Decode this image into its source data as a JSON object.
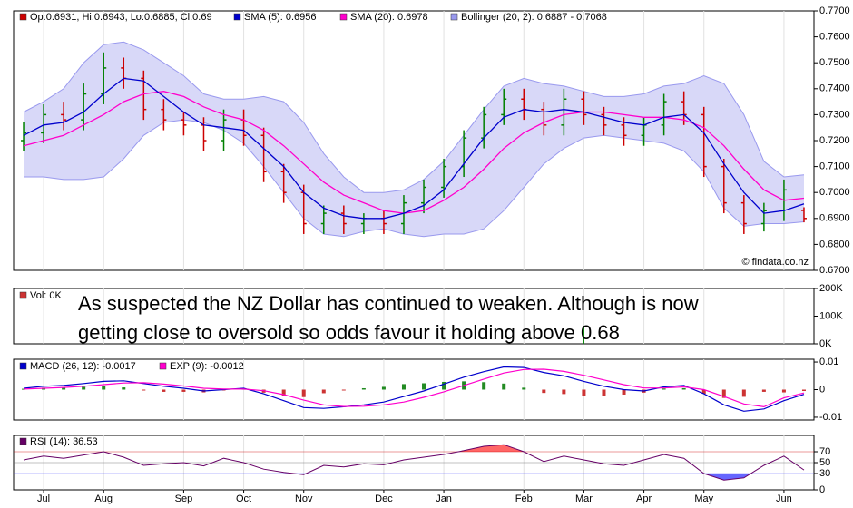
{
  "chart_data": [
    {
      "type": "ohlc",
      "legend_label": "Op:0.6931, Hi:0.6943, Lo:0.6885, Cl:0.69",
      "open": [
        0.72,
        0.723,
        0.73,
        0.728,
        0.738,
        0.748,
        0.744,
        0.732,
        0.728,
        0.726,
        0.72,
        0.728,
        0.722,
        0.708,
        0.7,
        0.688,
        0.692,
        0.688,
        0.69,
        0.688,
        0.696,
        0.702,
        0.71,
        0.721,
        0.73,
        0.736,
        0.732,
        0.726,
        0.736,
        0.73,
        0.726,
        0.722,
        0.726,
        0.735,
        0.73,
        0.71,
        0.696,
        0.688,
        0.693,
        0.6931
      ],
      "high": [
        0.727,
        0.734,
        0.735,
        0.742,
        0.754,
        0.752,
        0.747,
        0.736,
        0.731,
        0.729,
        0.732,
        0.732,
        0.725,
        0.711,
        0.703,
        0.695,
        0.695,
        0.692,
        0.693,
        0.699,
        0.705,
        0.713,
        0.724,
        0.733,
        0.74,
        0.74,
        0.735,
        0.74,
        0.739,
        0.733,
        0.729,
        0.729,
        0.738,
        0.739,
        0.733,
        0.713,
        0.699,
        0.696,
        0.705,
        0.6943
      ],
      "low": [
        0.716,
        0.719,
        0.724,
        0.724,
        0.734,
        0.74,
        0.728,
        0.724,
        0.722,
        0.716,
        0.716,
        0.718,
        0.704,
        0.696,
        0.684,
        0.684,
        0.684,
        0.684,
        0.684,
        0.684,
        0.692,
        0.698,
        0.706,
        0.717,
        0.726,
        0.728,
        0.722,
        0.722,
        0.726,
        0.722,
        0.718,
        0.718,
        0.722,
        0.726,
        0.706,
        0.692,
        0.684,
        0.685,
        0.689,
        0.6885
      ],
      "close": [
        0.723,
        0.73,
        0.728,
        0.738,
        0.748,
        0.744,
        0.732,
        0.728,
        0.726,
        0.72,
        0.728,
        0.722,
        0.708,
        0.7,
        0.688,
        0.692,
        0.688,
        0.69,
        0.688,
        0.696,
        0.702,
        0.71,
        0.721,
        0.73,
        0.736,
        0.732,
        0.726,
        0.736,
        0.73,
        0.726,
        0.722,
        0.726,
        0.735,
        0.73,
        0.71,
        0.696,
        0.688,
        0.693,
        0.701,
        0.69
      ],
      "up_color": "#008000",
      "down_color": "#cc0000",
      "series": [
        {
          "name": "SMA (5): 0.6956",
          "color": "#0000cc",
          "values": [
            0.722,
            0.726,
            0.727,
            0.731,
            0.738,
            0.744,
            0.743,
            0.737,
            0.731,
            0.726,
            0.725,
            0.724,
            0.717,
            0.71,
            0.7,
            0.694,
            0.691,
            0.69,
            0.69,
            0.692,
            0.695,
            0.701,
            0.711,
            0.721,
            0.729,
            0.732,
            0.731,
            0.732,
            0.731,
            0.729,
            0.727,
            0.726,
            0.729,
            0.73,
            0.723,
            0.711,
            0.7,
            0.692,
            0.693,
            0.6956
          ]
        },
        {
          "name": "SMA (20): 0.6978",
          "color": "#ff00cc",
          "values": [
            0.718,
            0.72,
            0.722,
            0.726,
            0.73,
            0.735,
            0.738,
            0.739,
            0.737,
            0.733,
            0.73,
            0.728,
            0.724,
            0.718,
            0.711,
            0.704,
            0.699,
            0.696,
            0.693,
            0.692,
            0.693,
            0.697,
            0.702,
            0.709,
            0.717,
            0.723,
            0.727,
            0.73,
            0.731,
            0.731,
            0.73,
            0.729,
            0.729,
            0.728,
            0.725,
            0.718,
            0.709,
            0.701,
            0.697,
            0.6978
          ]
        }
      ],
      "bollinger": {
        "name": "Bollinger (20, 2): 0.6887 - 0.7068",
        "color": "#9999ee",
        "fill": "#d8d8f8",
        "upper": [
          0.731,
          0.735,
          0.74,
          0.75,
          0.757,
          0.758,
          0.755,
          0.75,
          0.745,
          0.738,
          0.736,
          0.736,
          0.737,
          0.735,
          0.727,
          0.715,
          0.706,
          0.7,
          0.7,
          0.701,
          0.705,
          0.712,
          0.722,
          0.732,
          0.741,
          0.744,
          0.742,
          0.741,
          0.739,
          0.737,
          0.737,
          0.738,
          0.741,
          0.742,
          0.745,
          0.742,
          0.73,
          0.712,
          0.706,
          0.7068
        ],
        "lower": [
          0.706,
          0.706,
          0.705,
          0.705,
          0.706,
          0.713,
          0.722,
          0.727,
          0.728,
          0.727,
          0.724,
          0.719,
          0.71,
          0.7,
          0.69,
          0.684,
          0.683,
          0.685,
          0.686,
          0.684,
          0.683,
          0.684,
          0.684,
          0.686,
          0.693,
          0.702,
          0.711,
          0.717,
          0.721,
          0.722,
          0.721,
          0.72,
          0.719,
          0.716,
          0.708,
          0.694,
          0.687,
          0.688,
          0.688,
          0.6887
        ]
      },
      "ylim": [
        0.67,
        0.77
      ],
      "yticks": [
        {
          "value": 0.67,
          "label": "0.6700"
        },
        {
          "value": 0.68,
          "label": "0.6800"
        },
        {
          "value": 0.69,
          "label": "0.6900"
        },
        {
          "value": 0.7,
          "label": "0.7000"
        },
        {
          "value": 0.71,
          "label": "0.7100"
        },
        {
          "value": 0.72,
          "label": "0.7200"
        },
        {
          "value": 0.73,
          "label": "0.7300"
        },
        {
          "value": 0.74,
          "label": "0.7400"
        },
        {
          "value": 0.75,
          "label": "0.7500"
        },
        {
          "value": 0.76,
          "label": "0.7600"
        },
        {
          "value": 0.77,
          "label": "0.7700"
        }
      ],
      "credit": "© findata.co.nz"
    },
    {
      "type": "bar",
      "series": [
        {
          "name": "Vol: 0K",
          "color": "#008000",
          "values": [
            0,
            0,
            0,
            0,
            0,
            0,
            0,
            0,
            0,
            0,
            0,
            0,
            0,
            0,
            0,
            0,
            0,
            0,
            0,
            0,
            0,
            0,
            0,
            0,
            0,
            0,
            0,
            0,
            65000,
            0,
            0,
            0,
            0,
            0,
            0,
            0,
            0,
            0,
            0,
            0
          ]
        }
      ],
      "ylim": [
        0,
        200000
      ],
      "yticks": [
        {
          "value": 0,
          "label": "0K"
        },
        {
          "value": 100000,
          "label": "100K"
        },
        {
          "value": 200000,
          "label": "200K"
        }
      ],
      "annotation": [
        "As suspected the NZ Dollar has continued to weaken. Although is now",
        "getting close to oversold so odds favour it holding above 0.68"
      ],
      "annotation_color": "#3a6fd8"
    },
    {
      "type": "macd",
      "series": [
        {
          "name": "MACD (26, 12): -0.0017",
          "color": "#0000cc",
          "values": [
            0.0005,
            0.0012,
            0.0015,
            0.0022,
            0.003,
            0.0032,
            0.0022,
            0.0012,
            0.0005,
            -0.0005,
            0.0,
            0.0005,
            -0.0015,
            -0.004,
            -0.0065,
            -0.0068,
            -0.0062,
            -0.0055,
            -0.0045,
            -0.0025,
            -0.0005,
            0.002,
            0.0045,
            0.0065,
            0.0082,
            0.008,
            0.0062,
            0.005,
            0.003,
            0.0012,
            0.0,
            -0.0005,
            0.001,
            0.0015,
            -0.0015,
            -0.0055,
            -0.0078,
            -0.007,
            -0.004,
            -0.0017
          ]
        },
        {
          "name": "EXP (9): -0.0012",
          "color": "#ff00cc",
          "values": [
            0.0002,
            0.0005,
            0.0008,
            0.0012,
            0.0018,
            0.0024,
            0.0025,
            0.002,
            0.0013,
            0.0005,
            0.0002,
            0.0002,
            -0.0004,
            -0.0018,
            -0.0038,
            -0.0055,
            -0.0061,
            -0.006,
            -0.0055,
            -0.0045,
            -0.0028,
            -0.0008,
            0.0015,
            0.0038,
            0.006,
            0.0073,
            0.0074,
            0.0066,
            0.0052,
            0.0035,
            0.0018,
            0.0006,
            0.0006,
            0.001,
            0.0,
            -0.0025,
            -0.0052,
            -0.0062,
            -0.003,
            -0.0012
          ]
        }
      ],
      "histogram": [
        0.0003,
        0.0007,
        0.0007,
        0.001,
        0.0012,
        0.0008,
        -0.0003,
        -0.0008,
        -0.0008,
        -0.001,
        -0.0002,
        0.0003,
        -0.0011,
        -0.0022,
        -0.0027,
        -0.0013,
        -0.0001,
        0.0005,
        0.001,
        0.002,
        0.0023,
        0.0028,
        0.003,
        0.0027,
        0.0022,
        0.0007,
        -0.0012,
        -0.0016,
        -0.0022,
        -0.0023,
        -0.0018,
        -0.0011,
        0.0004,
        0.0005,
        -0.0015,
        -0.003,
        -0.0026,
        -0.0008,
        -0.001,
        -0.0005
      ],
      "hist_up_color": "#228b22",
      "hist_down_color": "#cc3333",
      "ylim": [
        -0.011,
        0.011
      ],
      "yticks": [
        -0.01,
        0,
        0.01
      ]
    },
    {
      "type": "rsi",
      "series": [
        {
          "name": "RSI (14): 36.53",
          "color": "#660066",
          "values": [
            55,
            62,
            58,
            64,
            70,
            60,
            45,
            48,
            50,
            44,
            58,
            50,
            38,
            32,
            28,
            45,
            42,
            48,
            46,
            55,
            60,
            65,
            72,
            80,
            83,
            70,
            52,
            62,
            55,
            48,
            45,
            55,
            65,
            58,
            30,
            18,
            22,
            45,
            62,
            36.53
          ]
        }
      ],
      "overbought": 70,
      "oversold": 30,
      "overbought_color": "#ff6666",
      "oversold_color": "#6666ff",
      "ylim": [
        0,
        100
      ],
      "yticks": [
        0,
        30,
        50,
        70
      ],
      "tick_colors": [
        "#000000",
        "#4444ff",
        "#666666",
        "#cc0000"
      ],
      "categories": [
        null,
        "Jul",
        null,
        null,
        "Aug",
        null,
        null,
        null,
        "Sep",
        null,
        null,
        "Oct",
        null,
        null,
        "Nov",
        null,
        null,
        null,
        "Dec",
        null,
        null,
        "Jan",
        null,
        null,
        null,
        "Feb",
        null,
        null,
        "Mar",
        null,
        null,
        "Apr",
        null,
        null,
        "May",
        null,
        null,
        null,
        "Jun",
        null
      ]
    }
  ]
}
